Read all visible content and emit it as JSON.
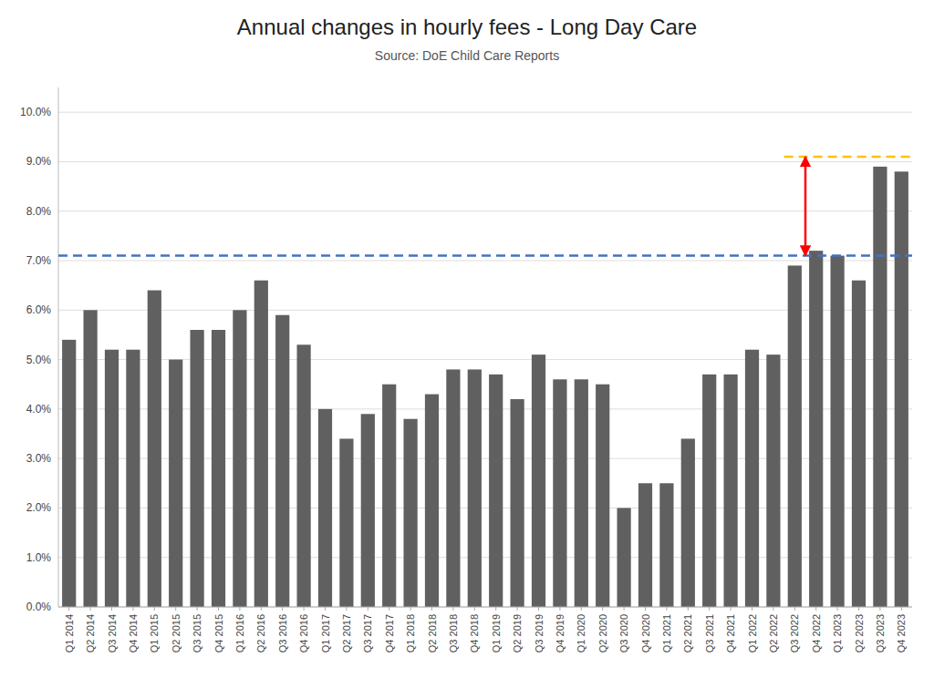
{
  "chart_data": {
    "type": "bar",
    "title": "Annual changes in hourly fees  - Long Day Care",
    "subtitle": "Source: DoE Child Care Reports",
    "categories": [
      "Q1 2014",
      "Q2 2014",
      "Q3 2014",
      "Q4 2014",
      "Q1 2015",
      "Q2 2015",
      "Q3 2015",
      "Q4 2015",
      "Q1 2016",
      "Q2 2016",
      "Q3 2016",
      "Q4 2016",
      "Q1 2017",
      "Q2 2017",
      "Q3 2017",
      "Q4 2017",
      "Q1 2018",
      "Q2 2018",
      "Q3 2018",
      "Q4 2018",
      "Q1 2019",
      "Q2 2019",
      "Q3 2019",
      "Q4 2019",
      "Q1 2020",
      "Q2 2020",
      "Q3 2020",
      "Q4 2020",
      "Q1 2021",
      "Q2 2021",
      "Q3 2021",
      "Q4 2021",
      "Q1 2022",
      "Q2 2022",
      "Q3 2022",
      "Q4 2022",
      "Q1 2023",
      "Q2 2023",
      "Q3 2023",
      "Q4 2023"
    ],
    "values": [
      0.054,
      0.06,
      0.052,
      0.052,
      0.064,
      0.05,
      0.056,
      0.056,
      0.06,
      0.066,
      0.059,
      0.053,
      0.04,
      0.034,
      0.039,
      0.045,
      0.038,
      0.043,
      0.048,
      0.048,
      0.047,
      0.042,
      0.051,
      0.046,
      0.046,
      0.045,
      0.02,
      0.025,
      0.025,
      0.034,
      0.047,
      0.047,
      0.052,
      0.051,
      0.069,
      0.072,
      0.071,
      0.066,
      0.089,
      0.088
    ],
    "color": "#606060",
    "ylim": [
      0,
      0.105
    ],
    "yticks": [
      {
        "value": 0.0,
        "label": "0.0%"
      },
      {
        "value": 0.01,
        "label": "1.0%"
      },
      {
        "value": 0.02,
        "label": "2.0%"
      },
      {
        "value": 0.03,
        "label": "3.0%"
      },
      {
        "value": 0.04,
        "label": "4.0%"
      },
      {
        "value": 0.05,
        "label": "5.0%"
      },
      {
        "value": 0.06,
        "label": "6.0%"
      },
      {
        "value": 0.07,
        "label": "7.0%"
      },
      {
        "value": 0.08,
        "label": "8.0%"
      },
      {
        "value": 0.09,
        "label": "9.0%"
      },
      {
        "value": 0.1,
        "label": "10.0%"
      }
    ],
    "grid": true,
    "reference_lines": [
      {
        "value": 0.071,
        "color": "#4472C4",
        "line_style": "dashed"
      },
      {
        "value": 0.091,
        "color": "#FFC000",
        "line_style": "dashed",
        "from_category": "Q3 2022",
        "to_category": "Q4 2023"
      }
    ],
    "arrow": {
      "bottom": 0.071,
      "top": 0.091,
      "color": "red",
      "category": "Q3 2022"
    }
  }
}
